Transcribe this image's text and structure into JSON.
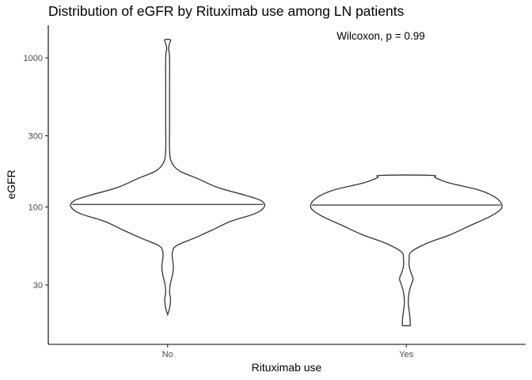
{
  "chart_data": {
    "type": "violin",
    "title": "Distribution of eGFR by Rituximab use among LN patients",
    "annotation": "Wilcoxon, p = 0.99",
    "xlabel": "Rituximab use",
    "ylabel": "eGFR",
    "y_scale": "log10",
    "ylim": [
      12,
      1650
    ],
    "y_ticks": [
      30,
      100,
      300,
      1000
    ],
    "categories": [
      "No",
      "Yes"
    ],
    "grid": false,
    "legend": "none",
    "colors": {
      "outline": "#333333",
      "fill": "#ffffff"
    },
    "violins": [
      {
        "category": "No",
        "median": 104,
        "min": 19,
        "max": 1320,
        "density_profile": [
          [
            19,
            0.0
          ],
          [
            21,
            0.02
          ],
          [
            24,
            0.03
          ],
          [
            27,
            0.02
          ],
          [
            31,
            0.03
          ],
          [
            35,
            0.05
          ],
          [
            40,
            0.06
          ],
          [
            45,
            0.05
          ],
          [
            50,
            0.05
          ],
          [
            55,
            0.09
          ],
          [
            62,
            0.28
          ],
          [
            70,
            0.46
          ],
          [
            80,
            0.65
          ],
          [
            90,
            0.9
          ],
          [
            100,
            1.0
          ],
          [
            110,
            0.97
          ],
          [
            120,
            0.8
          ],
          [
            135,
            0.52
          ],
          [
            155,
            0.31
          ],
          [
            175,
            0.12
          ],
          [
            200,
            0.04
          ],
          [
            240,
            0.02
          ],
          [
            350,
            0.02
          ],
          [
            600,
            0.02
          ],
          [
            1000,
            0.02
          ],
          [
            1150,
            0.01
          ],
          [
            1250,
            0.02
          ],
          [
            1320,
            0.03
          ]
        ]
      },
      {
        "category": "Yes",
        "median": 103,
        "min": 16,
        "max": 163,
        "density_profile": [
          [
            16,
            0.04
          ],
          [
            17.5,
            0.04
          ],
          [
            20,
            0.03
          ],
          [
            23,
            0.02
          ],
          [
            27,
            0.03
          ],
          [
            30,
            0.05
          ],
          [
            33,
            0.07
          ],
          [
            36,
            0.05
          ],
          [
            40,
            0.03
          ],
          [
            45,
            0.03
          ],
          [
            50,
            0.05
          ],
          [
            57,
            0.21
          ],
          [
            65,
            0.45
          ],
          [
            75,
            0.66
          ],
          [
            88,
            0.89
          ],
          [
            100,
            0.99
          ],
          [
            115,
            0.93
          ],
          [
            130,
            0.75
          ],
          [
            145,
            0.44
          ],
          [
            157,
            0.3
          ],
          [
            163,
            0.26
          ]
        ]
      }
    ]
  }
}
